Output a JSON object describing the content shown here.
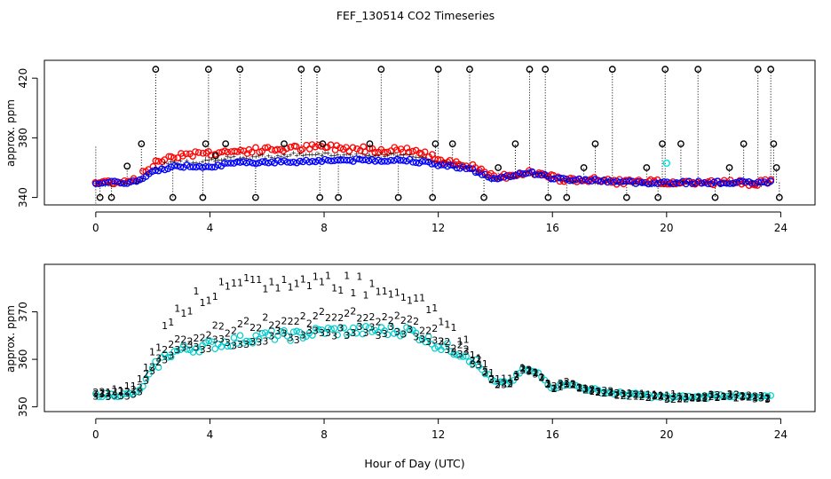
{
  "title": "FEF_130514  CO2 Timeseries",
  "xlabel": "Hour of Day (UTC)",
  "chart_data": [
    {
      "type": "scatter",
      "panel": "top",
      "title": "",
      "xlabel": "",
      "ylabel": "approx. ppm",
      "xlim": [
        -1.8,
        25.2
      ],
      "ylim": [
        335,
        432
      ],
      "xticks": [
        0,
        4,
        8,
        12,
        16,
        20,
        24
      ],
      "yticks": [
        340,
        380,
        420
      ],
      "grid": false,
      "series_colors": {
        "black_circles": "#000000",
        "red_circles": "#ff0000",
        "green_marks": "#00cc00",
        "blue_circles": "#0000ff",
        "cyan_circle": "#00e5e5"
      },
      "baseline": {
        "blue": [
          [
            0,
            350
          ],
          [
            1,
            350
          ],
          [
            1.5,
            351
          ],
          [
            2,
            357
          ],
          [
            2.5,
            360
          ],
          [
            3,
            361
          ],
          [
            4,
            361
          ],
          [
            5,
            363
          ],
          [
            6,
            364
          ],
          [
            7,
            364
          ],
          [
            8,
            365
          ],
          [
            9,
            365
          ],
          [
            10,
            365
          ],
          [
            11,
            365
          ],
          [
            12,
            362
          ],
          [
            13,
            360
          ],
          [
            14,
            352
          ],
          [
            14.5,
            354
          ],
          [
            15,
            357
          ],
          [
            15.5,
            356
          ],
          [
            16,
            353
          ],
          [
            16.5,
            352
          ],
          [
            17,
            352
          ],
          [
            18,
            351
          ],
          [
            19,
            350
          ],
          [
            20,
            350
          ],
          [
            20.2,
            350
          ],
          [
            21,
            350
          ],
          [
            22,
            350
          ],
          [
            23,
            350
          ],
          [
            23.7,
            350
          ]
        ],
        "green": [
          [
            0,
            350
          ],
          [
            1,
            350
          ],
          [
            1.5,
            351
          ],
          [
            2,
            359
          ],
          [
            2.5,
            363
          ],
          [
            3,
            364
          ],
          [
            4,
            365
          ],
          [
            5,
            367
          ],
          [
            6,
            368
          ],
          [
            7,
            369
          ],
          [
            8,
            369
          ],
          [
            9,
            369
          ],
          [
            10,
            369
          ],
          [
            11,
            369
          ],
          [
            12,
            364
          ],
          [
            13,
            361
          ],
          [
            14,
            352
          ],
          [
            14.5,
            354
          ],
          [
            15,
            357
          ],
          [
            15.5,
            356
          ],
          [
            16,
            353
          ],
          [
            16.5,
            352
          ],
          [
            17,
            352
          ],
          [
            18,
            351
          ],
          [
            19,
            350
          ],
          [
            20,
            350
          ],
          [
            21,
            350
          ],
          [
            22,
            350
          ],
          [
            23,
            350
          ],
          [
            23.7,
            350
          ]
        ],
        "red": [
          [
            0,
            350
          ],
          [
            1,
            351
          ],
          [
            1.5,
            353
          ],
          [
            2,
            362
          ],
          [
            2.5,
            367
          ],
          [
            3,
            369
          ],
          [
            4,
            370
          ],
          [
            5,
            371
          ],
          [
            6,
            372
          ],
          [
            7,
            373
          ],
          [
            8,
            374
          ],
          [
            9,
            373
          ],
          [
            10,
            372
          ],
          [
            11,
            372
          ],
          [
            12,
            366
          ],
          [
            13,
            362
          ],
          [
            14,
            353
          ],
          [
            14.5,
            355
          ],
          [
            15,
            357
          ],
          [
            15.5,
            356
          ],
          [
            16,
            353
          ],
          [
            16.5,
            352
          ],
          [
            17,
            352
          ],
          [
            18,
            351
          ],
          [
            19,
            350
          ],
          [
            20,
            350
          ],
          [
            21,
            350
          ],
          [
            22,
            350
          ],
          [
            23,
            350
          ],
          [
            23.7,
            350
          ]
        ]
      },
      "black_spikes": [
        [
          0.15,
          340,
          "low"
        ],
        [
          0.55,
          340,
          "low"
        ],
        [
          1.1,
          361,
          "mid"
        ],
        [
          1.6,
          376,
          "mid"
        ],
        [
          2.1,
          426,
          "high"
        ],
        [
          2.7,
          340,
          "low"
        ],
        [
          3.75,
          340,
          "low"
        ],
        [
          3.85,
          376,
          "mid"
        ],
        [
          3.95,
          426,
          "high"
        ],
        [
          4.2,
          368,
          "mid"
        ],
        [
          4.55,
          376,
          "mid"
        ],
        [
          5.05,
          426,
          "high"
        ],
        [
          5.6,
          340,
          "low"
        ],
        [
          6.6,
          376,
          "mid"
        ],
        [
          7.2,
          426,
          "high"
        ],
        [
          7.75,
          426,
          "high"
        ],
        [
          7.85,
          340,
          "low"
        ],
        [
          7.95,
          376,
          "mid"
        ],
        [
          8.5,
          340,
          "low"
        ],
        [
          9.6,
          376,
          "mid"
        ],
        [
          10.0,
          426,
          "high"
        ],
        [
          10.6,
          340,
          "low"
        ],
        [
          11.8,
          340,
          "low"
        ],
        [
          11.9,
          376,
          "mid"
        ],
        [
          12.0,
          426,
          "high"
        ],
        [
          12.5,
          376,
          "mid"
        ],
        [
          13.1,
          426,
          "high"
        ],
        [
          13.6,
          340,
          "low"
        ],
        [
          14.1,
          360,
          "mid"
        ],
        [
          14.7,
          376,
          "mid"
        ],
        [
          15.2,
          426,
          "high"
        ],
        [
          15.75,
          426,
          "high"
        ],
        [
          15.85,
          340,
          "low"
        ],
        [
          16.5,
          340,
          "low"
        ],
        [
          17.1,
          360,
          "mid"
        ],
        [
          17.5,
          376,
          "mid"
        ],
        [
          18.1,
          426,
          "high"
        ],
        [
          18.6,
          340,
          "low"
        ],
        [
          19.3,
          360,
          "mid"
        ],
        [
          19.7,
          340,
          "low"
        ],
        [
          19.85,
          376,
          "mid"
        ],
        [
          19.95,
          426,
          "high"
        ],
        [
          20.5,
          376,
          "mid"
        ],
        [
          21.1,
          426,
          "high"
        ],
        [
          21.7,
          340,
          "low"
        ],
        [
          22.2,
          360,
          "mid"
        ],
        [
          22.7,
          376,
          "mid"
        ],
        [
          23.2,
          426,
          "high"
        ],
        [
          23.65,
          426,
          "high"
        ],
        [
          23.75,
          376,
          "mid"
        ],
        [
          23.85,
          360,
          "mid"
        ],
        [
          23.95,
          340,
          "low"
        ]
      ],
      "cyan_point": [
        20.0,
        363
      ]
    },
    {
      "type": "scatter",
      "panel": "bottom",
      "title": "",
      "xlabel": "",
      "ylabel": "approx. ppm",
      "xlim": [
        -1.8,
        25.2
      ],
      "ylim": [
        349,
        380
      ],
      "xticks": [
        0,
        4,
        8,
        12,
        16,
        20,
        24
      ],
      "yticks": [
        350,
        360,
        370
      ],
      "grid": false,
      "series_colors": {
        "series_1": "#ff0000",
        "series_2": "#00cc00",
        "series_3": "#0000ff",
        "circles": "#00cccc"
      },
      "series_markers": [
        "1",
        "2",
        "3"
      ],
      "baseline": {
        "series_3": [
          [
            0,
            352.5
          ],
          [
            1,
            352.5
          ],
          [
            1.5,
            353
          ],
          [
            2,
            358
          ],
          [
            2.5,
            361
          ],
          [
            3,
            362
          ],
          [
            4,
            363
          ],
          [
            5,
            364
          ],
          [
            6,
            365
          ],
          [
            7,
            365
          ],
          [
            8,
            366
          ],
          [
            9,
            366
          ],
          [
            10,
            366
          ],
          [
            11,
            366
          ],
          [
            12,
            363
          ],
          [
            13,
            361
          ],
          [
            14,
            355
          ],
          [
            14.5,
            355
          ],
          [
            15,
            358
          ],
          [
            15.5,
            357
          ],
          [
            16,
            354
          ],
          [
            16.5,
            355
          ],
          [
            17,
            354
          ],
          [
            18,
            353
          ],
          [
            19,
            352.5
          ],
          [
            20,
            352
          ],
          [
            21,
            352
          ],
          [
            22,
            352.5
          ],
          [
            23,
            352
          ],
          [
            23.7,
            352
          ]
        ],
        "series_2": [
          [
            0,
            353
          ],
          [
            1,
            353
          ],
          [
            1.5,
            354
          ],
          [
            2,
            359
          ],
          [
            2.5,
            363
          ],
          [
            3,
            364.5
          ],
          [
            4,
            366
          ],
          [
            5,
            367
          ],
          [
            6,
            368
          ],
          [
            7,
            368.5
          ],
          [
            8,
            369
          ],
          [
            9,
            369
          ],
          [
            10,
            369
          ],
          [
            11,
            368.5
          ],
          [
            12,
            365
          ],
          [
            13,
            362
          ],
          [
            14,
            355
          ],
          [
            14.5,
            355
          ],
          [
            15,
            358
          ],
          [
            15.5,
            357
          ],
          [
            16,
            354
          ],
          [
            16.5,
            355
          ],
          [
            17,
            354
          ],
          [
            18,
            353
          ],
          [
            19,
            352.5
          ],
          [
            20,
            352
          ],
          [
            21,
            352
          ],
          [
            22,
            352.5
          ],
          [
            23,
            352
          ],
          [
            23.7,
            352
          ]
        ],
        "series_1": [
          [
            0,
            353
          ],
          [
            1,
            354
          ],
          [
            1.5,
            355
          ],
          [
            2,
            362
          ],
          [
            2.5,
            368
          ],
          [
            3,
            371
          ],
          [
            4,
            374
          ],
          [
            5,
            375
          ],
          [
            6,
            376
          ],
          [
            7,
            376
          ],
          [
            8,
            377
          ],
          [
            9,
            376
          ],
          [
            10,
            375
          ],
          [
            11,
            374
          ],
          [
            12,
            369
          ],
          [
            13,
            364
          ],
          [
            14,
            356
          ],
          [
            14.5,
            356
          ],
          [
            15,
            358
          ],
          [
            15.5,
            357
          ],
          [
            16,
            354
          ],
          [
            16.5,
            355
          ],
          [
            17,
            354
          ],
          [
            18,
            353
          ],
          [
            19,
            352.5
          ],
          [
            20,
            352.5
          ],
          [
            21,
            352
          ],
          [
            22,
            352.5
          ],
          [
            23,
            352
          ],
          [
            23.7,
            352
          ]
        ]
      }
    }
  ]
}
